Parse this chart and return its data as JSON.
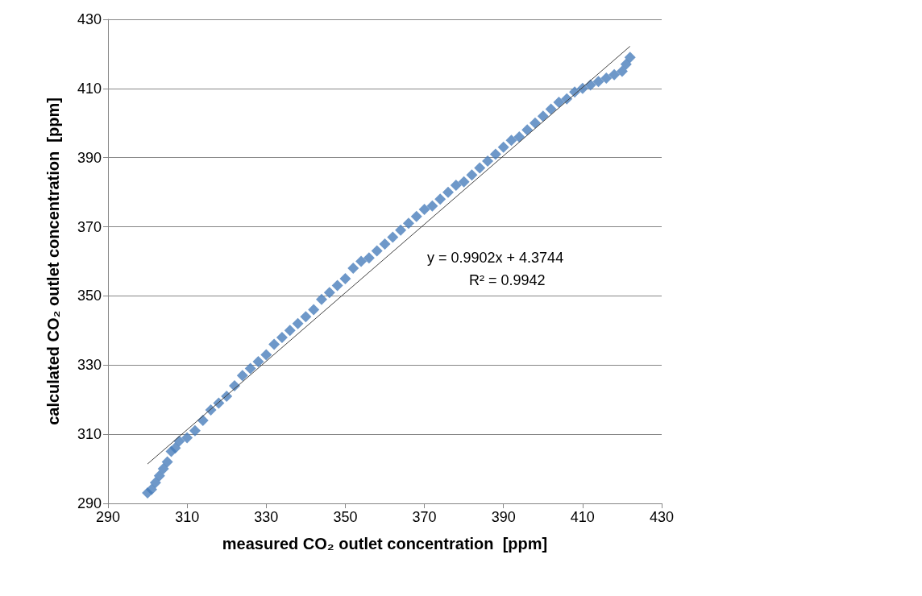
{
  "chart_data": {
    "type": "scatter",
    "xlabel": "measured CO₂ outlet concentration  [ppm]",
    "ylabel": "calculated CO₂ outlet concentration  [ppm]",
    "xlim": [
      290,
      430
    ],
    "xticks": [
      290,
      310,
      330,
      350,
      370,
      390,
      410,
      430
    ],
    "ylim": [
      290,
      430
    ],
    "yticks": [
      290,
      310,
      330,
      350,
      370,
      390,
      410,
      430
    ],
    "grid": "y",
    "marker": "diamond",
    "annotations": [
      "y = 0.9902x + 4.3744",
      "R² = 0.9942"
    ],
    "series": [
      {
        "color": "#4a7ebb",
        "x": [
          300,
          301,
          302,
          303,
          304,
          305,
          306,
          307,
          308,
          310,
          312,
          314,
          316,
          318,
          320,
          322,
          324,
          326,
          328,
          330,
          332,
          334,
          336,
          338,
          340,
          342,
          344,
          346,
          348,
          350,
          352,
          354,
          356,
          358,
          360,
          362,
          364,
          366,
          368,
          370,
          372,
          374,
          376,
          378,
          380,
          382,
          384,
          386,
          388,
          390,
          392,
          394,
          396,
          398,
          400,
          402,
          404,
          406,
          408,
          410,
          412,
          414,
          416,
          418,
          420,
          421,
          422
        ],
        "values": [
          293,
          294,
          296,
          298,
          300,
          302,
          305,
          306,
          308,
          309,
          311,
          314,
          317,
          319,
          321,
          324,
          327,
          329,
          331,
          333,
          336,
          338,
          340,
          342,
          344,
          346,
          349,
          351,
          353,
          355,
          358,
          360,
          361,
          363,
          365,
          367,
          369,
          371,
          373,
          375,
          376,
          378,
          380,
          382,
          383,
          385,
          387,
          389,
          391,
          393,
          395,
          396,
          398,
          400,
          402,
          404,
          406,
          407,
          409,
          410,
          411,
          412,
          413,
          414,
          415,
          417,
          419
        ]
      },
      {
        "type": "line",
        "color": "#404040",
        "marker": "none",
        "line_style": "solid",
        "x": [
          300,
          422
        ],
        "values": [
          301.4,
          422.2
        ]
      }
    ]
  }
}
